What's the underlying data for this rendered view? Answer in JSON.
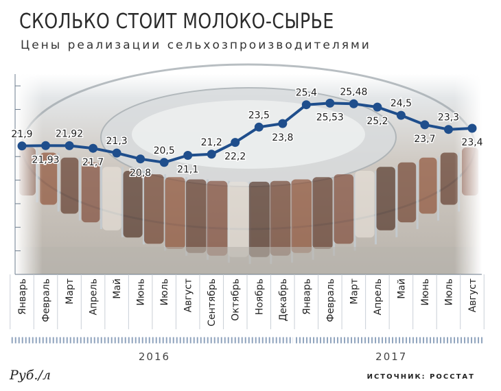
{
  "header": {
    "title": "СКОЛЬКО СТОИТ МОЛОКО-СЫРЬЕ",
    "subtitle": "Цены реализации сельхозпроизводителями"
  },
  "footer": {
    "unit": "Руб./л",
    "source": "ИСТОЧНИК: РОССТАТ"
  },
  "colors": {
    "line": "#1f4e8c",
    "marker": "#1f4e8c",
    "year_band": "#8fa3bd",
    "grid": "#6b7b8c"
  },
  "chart_data": {
    "type": "line",
    "title": "СКОЛЬКО СТОИТ МОЛОКО-СЫРЬЕ",
    "subtitle": "Цены реализации сельхозпроизводителями",
    "ylabel": "Руб./л",
    "years": [
      {
        "label": "2016",
        "start": 0,
        "end": 11
      },
      {
        "label": "2017",
        "start": 12,
        "end": 19
      }
    ],
    "categories": [
      "Январь",
      "Февраль",
      "Март",
      "Апрель",
      "Май",
      "Июнь",
      "Июль",
      "Август",
      "Сентябрь",
      "Октябрь",
      "Ноябрь",
      "Декабрь",
      "Январь",
      "Февраль",
      "Март",
      "Апрель",
      "Май",
      "Июнь",
      "Июль",
      "Август"
    ],
    "values": [
      21.9,
      21.93,
      21.92,
      21.7,
      21.3,
      20.8,
      20.5,
      21.1,
      21.2,
      22.2,
      23.5,
      23.8,
      25.4,
      25.53,
      25.48,
      25.2,
      24.5,
      23.7,
      23.3,
      23.4
    ],
    "value_labels": [
      "21,9",
      "21,93",
      "21,92",
      "21,7",
      "21,3",
      "20,8",
      "20,5",
      "21,1",
      "21,2",
      "22,2",
      "23,5",
      "23,8",
      "25,4",
      "25,53",
      "25,48",
      "25,2",
      "24,5",
      "23,7",
      "23,3",
      "23,4"
    ],
    "label_positions": [
      "above",
      "below",
      "above",
      "below",
      "above",
      "below",
      "above",
      "below",
      "above",
      "below",
      "above",
      "below",
      "above",
      "below",
      "above",
      "below",
      "above",
      "below",
      "above",
      "below"
    ],
    "ylim": [
      11,
      28
    ],
    "grid": true,
    "legend": "none"
  }
}
